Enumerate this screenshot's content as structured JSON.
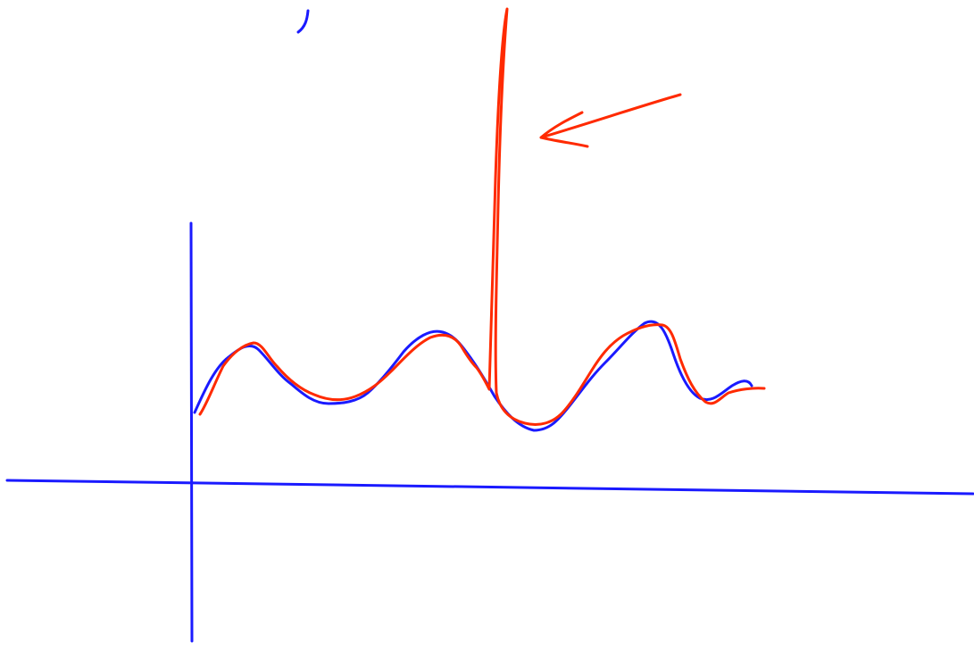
{
  "colors": {
    "background": "#ffffff",
    "blue_ink": "#1a1aff",
    "red_ink": "#ff2a00"
  },
  "diagram": {
    "strokes": [
      {
        "name": "y-axis",
        "color": "blue_ink"
      },
      {
        "name": "x-axis",
        "color": "blue_ink"
      },
      {
        "name": "blue-wave-curve",
        "color": "blue_ink"
      },
      {
        "name": "red-wave-curve-with-spike",
        "color": "red_ink"
      },
      {
        "name": "red-arrow",
        "color": "red_ink"
      },
      {
        "name": "top-blue-scribble",
        "color": "blue_ink"
      }
    ]
  }
}
